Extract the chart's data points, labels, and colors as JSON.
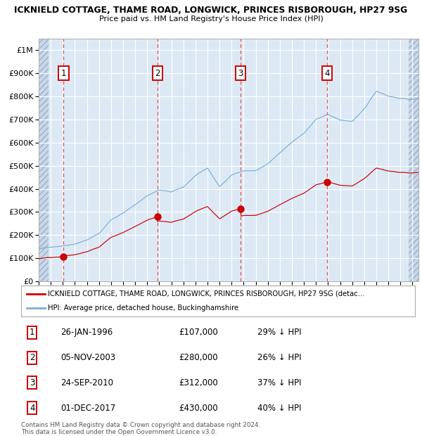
{
  "title1": "ICKNIELD COTTAGE, THAME ROAD, LONGWICK, PRINCES RISBOROUGH, HP27 9SG",
  "title2": "Price paid vs. HM Land Registry's House Price Index (HPI)",
  "sale_dates_num": [
    1996.07,
    2003.84,
    2010.73,
    2017.92
  ],
  "sale_prices": [
    107000,
    280000,
    312000,
    430000
  ],
  "sale_labels": [
    "1",
    "2",
    "3",
    "4"
  ],
  "sale_pct_below": [
    "29%",
    "26%",
    "37%",
    "40%"
  ],
  "sale_date_strs": [
    "26-JAN-1996",
    "05-NOV-2003",
    "24-SEP-2010",
    "01-DEC-2017"
  ],
  "sale_price_strs": [
    "£107,000",
    "£280,000",
    "£312,000",
    "£430,000"
  ],
  "red_line_color": "#cc0000",
  "blue_line_color": "#7bafd4",
  "plot_bg_color": "#dce9f5",
  "grid_color": "#ffffff",
  "vline_color": "#e05050",
  "box_edge_color": "#cc0000",
  "legend_line1": "ICKNIELD COTTAGE, THAME ROAD, LONGWICK, PRINCES RISBOROUGH, HP27 9SG (detac…",
  "legend_line2": "HPI: Average price, detached house, Buckinghamshire",
  "footer1": "Contains HM Land Registry data © Crown copyright and database right 2024.",
  "footer2": "This data is licensed under the Open Government Licence v3.0.",
  "xmin": 1994.0,
  "xmax": 2025.5,
  "ymin": 0,
  "ymax": 1050000,
  "yticks": [
    0,
    100000,
    200000,
    300000,
    400000,
    500000,
    600000,
    700000,
    800000,
    900000,
    1000000
  ],
  "xticks_start": 1994,
  "xticks_end": 2025
}
